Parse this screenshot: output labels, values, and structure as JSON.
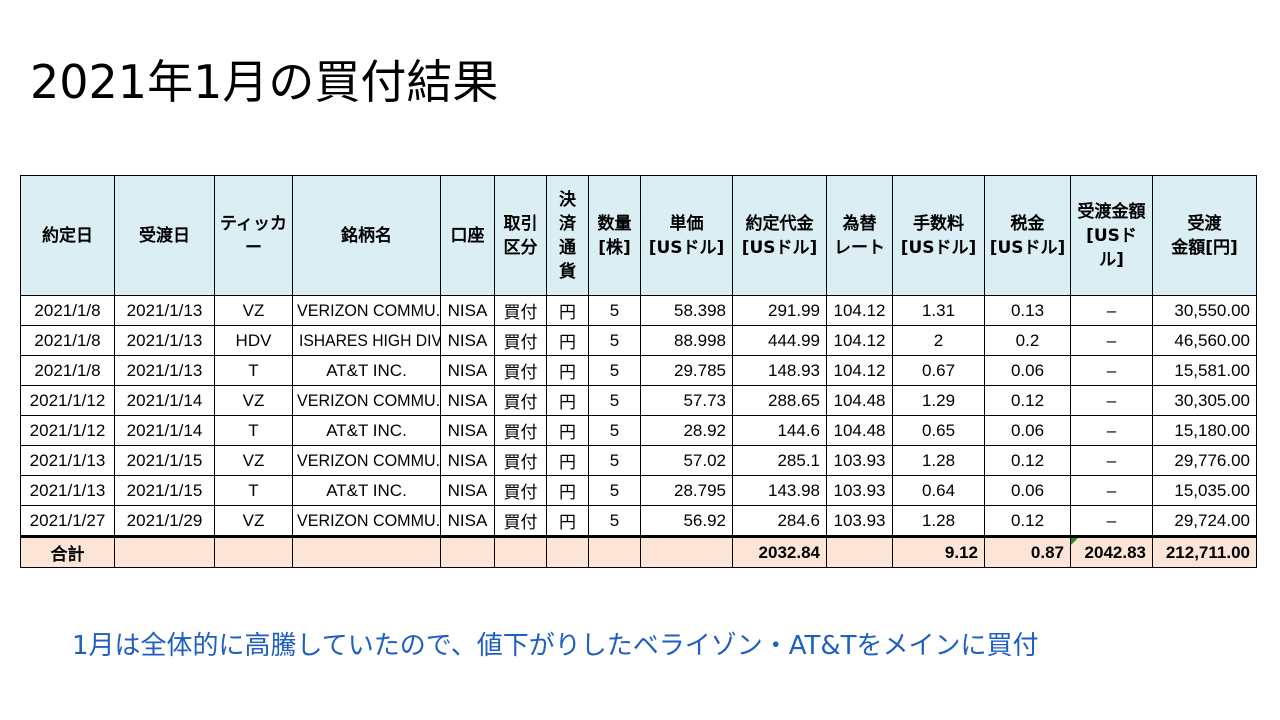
{
  "title": "2021年1月の買付結果",
  "columns": [
    [
      "約定日"
    ],
    [
      "受渡日"
    ],
    [
      "ティッカー"
    ],
    [
      "銘柄名"
    ],
    [
      "口座"
    ],
    [
      "取引",
      "区分"
    ],
    [
      "決",
      "済",
      "通",
      "貨"
    ],
    [
      "数量",
      "[株]"
    ],
    [
      "単価",
      "[USドル]"
    ],
    [
      "約定代金",
      "[USドル]"
    ],
    [
      "為替",
      "レート"
    ],
    [
      "手数料",
      "[USドル]"
    ],
    [
      "税金",
      "[USドル]"
    ],
    [
      "受渡金額",
      "[USド",
      "ル]"
    ],
    [
      "受渡",
      "金額[円]"
    ]
  ],
  "rows": [
    [
      "2021/1/8",
      "2021/1/13",
      "VZ",
      "VERIZON COMMU.",
      "NISA",
      "買付",
      "円",
      "5",
      "58.398",
      "291.99",
      "104.12",
      "1.31",
      "0.13",
      "–",
      "30,550.00"
    ],
    [
      "2021/1/8",
      "2021/1/13",
      "HDV",
      "ISHARES HIGH DIV",
      "NISA",
      "買付",
      "円",
      "5",
      "88.998",
      "444.99",
      "104.12",
      "2",
      "0.2",
      "–",
      "46,560.00"
    ],
    [
      "2021/1/8",
      "2021/1/13",
      "T",
      "AT&T INC.",
      "NISA",
      "買付",
      "円",
      "5",
      "29.785",
      "148.93",
      "104.12",
      "0.67",
      "0.06",
      "–",
      "15,581.00"
    ],
    [
      "2021/1/12",
      "2021/1/14",
      "VZ",
      "VERIZON COMMU.",
      "NISA",
      "買付",
      "円",
      "5",
      "57.73",
      "288.65",
      "104.48",
      "1.29",
      "0.12",
      "–",
      "30,305.00"
    ],
    [
      "2021/1/12",
      "2021/1/14",
      "T",
      "AT&T INC.",
      "NISA",
      "買付",
      "円",
      "5",
      "28.92",
      "144.6",
      "104.48",
      "0.65",
      "0.06",
      "–",
      "15,180.00"
    ],
    [
      "2021/1/13",
      "2021/1/15",
      "VZ",
      "VERIZON COMMU.",
      "NISA",
      "買付",
      "円",
      "5",
      "57.02",
      "285.1",
      "103.93",
      "1.28",
      "0.12",
      "–",
      "29,776.00"
    ],
    [
      "2021/1/13",
      "2021/1/15",
      "T",
      "AT&T INC.",
      "NISA",
      "買付",
      "円",
      "5",
      "28.795",
      "143.98",
      "103.93",
      "0.64",
      "0.06",
      "–",
      "15,035.00"
    ],
    [
      "2021/1/27",
      "2021/1/29",
      "VZ",
      "VERIZON COMMU.",
      "NISA",
      "買付",
      "円",
      "5",
      "56.92",
      "284.6",
      "103.93",
      "1.28",
      "0.12",
      "–",
      "29,724.00"
    ]
  ],
  "total": [
    "合計",
    "",
    "",
    "",
    "",
    "",
    "",
    "",
    "",
    "2032.84",
    "",
    "9.12",
    "0.87",
    "2042.83",
    "212,711.00"
  ],
  "note": "1月は全体的に高騰していたので、値下がりしたベライゾン・AT&Tをメインに買付",
  "colors": {
    "header_bg": "#dbeef4",
    "total_bg": "#fce4d6",
    "note_text": "#1f5fbf",
    "error_marker": "#2e8b2e"
  }
}
